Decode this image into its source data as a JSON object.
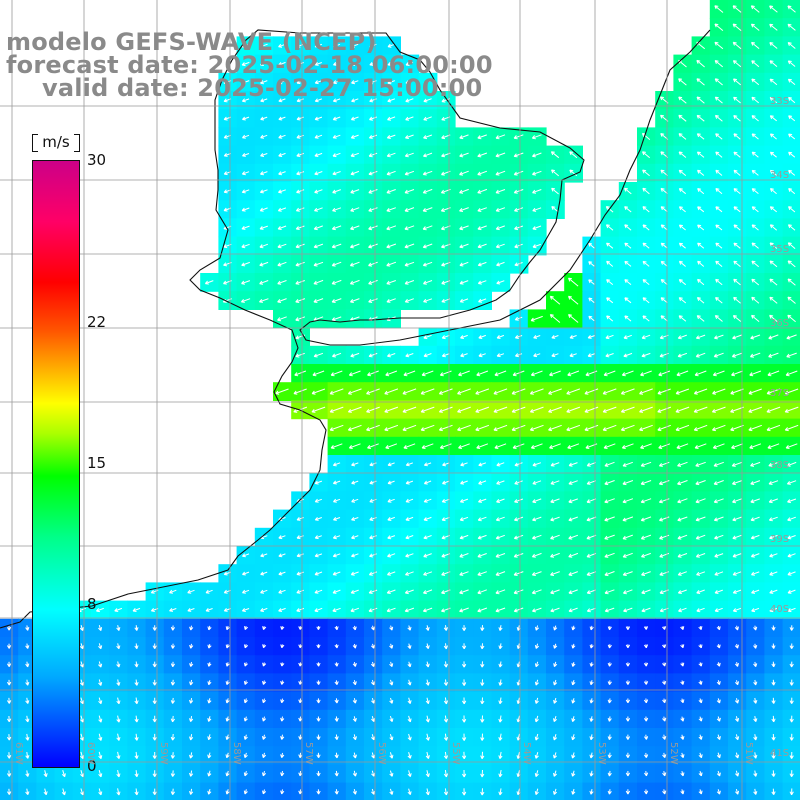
{
  "title": {
    "model": "modelo GEFS-WAVE (NCEP)",
    "forecast": "forecast date: 2025-02-18 06:00:00",
    "valid": "valid date: 2025-02-27 15:00:00"
  },
  "colorbar": {
    "units": "m/s",
    "ticks": [
      "30",
      "22",
      "15",
      "8",
      "0"
    ],
    "tick_values": [
      30,
      22,
      15,
      8,
      0
    ],
    "range": [
      0,
      30
    ],
    "colors": [
      "#0000ff",
      "#00aaff",
      "#00ffff",
      "#00ff88",
      "#00ff00",
      "#aaff00",
      "#ffff00",
      "#ffaa00",
      "#ff5500",
      "#ff0000",
      "#ff0066",
      "#cc0088"
    ]
  },
  "grid": {
    "lat_labels": [
      "33S",
      "34S",
      "35S",
      "36S",
      "37S",
      "38S",
      "39S",
      "40S",
      "41S"
    ],
    "lon_labels": [
      "61W",
      "60W",
      "59W",
      "58W",
      "57W",
      "56W",
      "55W",
      "54W",
      "53W",
      "52W",
      "51W"
    ],
    "color": "#999999"
  },
  "field": {
    "background_wind_ms": 6,
    "south_wind_ms": 2.5,
    "jet_wind_ms": 13,
    "coast_color": "#111111",
    "arrow_color": "#ffffff"
  }
}
